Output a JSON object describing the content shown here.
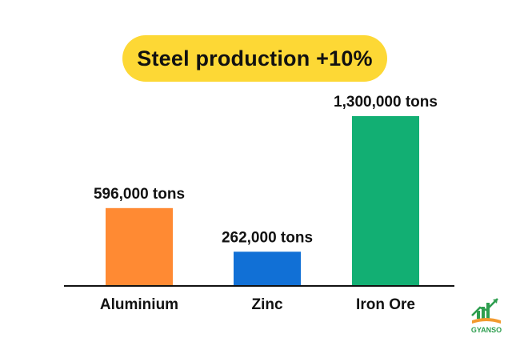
{
  "chart_data": {
    "type": "bar",
    "title": "Steel production +10%",
    "categories": [
      "Aluminium",
      "Zinc",
      "Iron Ore"
    ],
    "values": [
      596000,
      262000,
      1300000
    ],
    "data_labels": [
      "596,000 tons",
      "262,000 tons",
      "1,300,000 tons"
    ],
    "unit": "tons",
    "ylim": [
      0,
      1400000
    ],
    "grid": false,
    "legend": "none",
    "colors": [
      "#FF8A33",
      "#1170D6",
      "#12AF73"
    ]
  },
  "colors": {
    "title_pill": "#FDD835",
    "axis": "#111111",
    "text": "#111111",
    "logo_green": "#2E9E4F",
    "logo_orange": "#F29A2E"
  },
  "logo": {
    "text": "GYANSO",
    "icon": "rising-chart-book-icon"
  }
}
